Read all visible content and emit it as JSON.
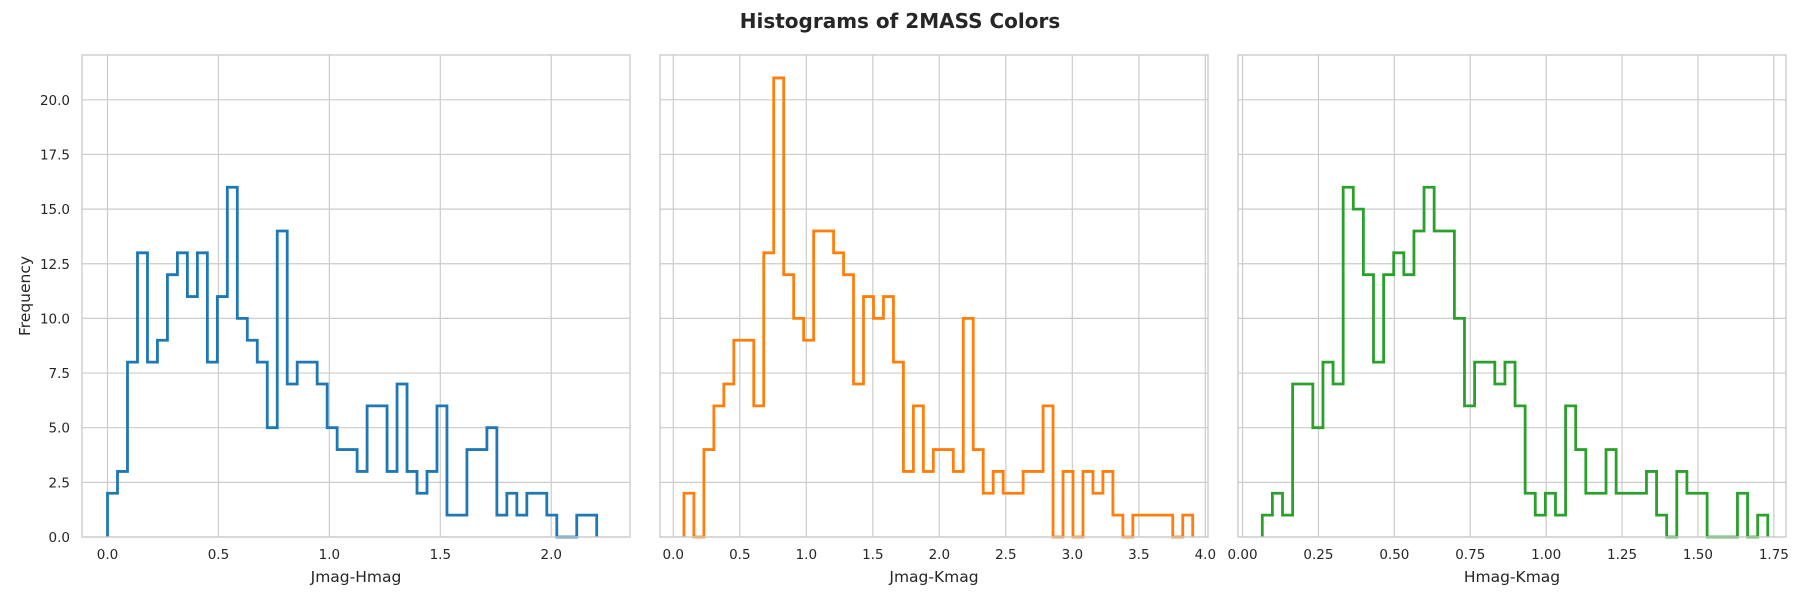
{
  "figure": {
    "title": "Histograms of 2MASS Colors"
  },
  "chart_data": [
    {
      "type": "histogram",
      "style": "step",
      "color": "#1f77b4",
      "xlabel": "Jmag-Hmag",
      "ylabel": "Frequency",
      "xlim": [
        -0.115,
        2.355
      ],
      "ylim": [
        0,
        22.05
      ],
      "xticks": [
        0.0,
        0.5,
        1.0,
        1.5,
        2.0
      ],
      "xtick_labels": [
        "0.0",
        "0.5",
        "1.0",
        "1.5",
        "2.0"
      ],
      "yticks": [
        0.0,
        2.5,
        5.0,
        7.5,
        10.0,
        12.5,
        15.0,
        17.5,
        20.0
      ],
      "ytick_labels": [
        "0.0",
        "2.5",
        "5.0",
        "7.5",
        "10.0",
        "12.5",
        "15.0",
        "17.5",
        "20.0"
      ],
      "grid": true,
      "bin_start": 0.0,
      "bin_width": 0.045,
      "counts": [
        2,
        3,
        8,
        13,
        8,
        9,
        12,
        13,
        11,
        13,
        8,
        11,
        16,
        10,
        9,
        8,
        5,
        14,
        7,
        8,
        8,
        7,
        5,
        4,
        4,
        3,
        6,
        6,
        3,
        7,
        3,
        2,
        3,
        6,
        1,
        1,
        4,
        4,
        5,
        1,
        2,
        1,
        2,
        2,
        1,
        0,
        0,
        1,
        1
      ]
    },
    {
      "type": "histogram",
      "style": "step",
      "color": "#ff7f0e",
      "xlabel": "Jmag-Kmag",
      "ylabel": "",
      "xlim": [
        -0.1,
        4.02
      ],
      "ylim": [
        0,
        22.05
      ],
      "xticks": [
        0.0,
        0.5,
        1.0,
        1.5,
        2.0,
        2.5,
        3.0,
        3.5,
        4.0
      ],
      "xtick_labels": [
        "0.0",
        "0.5",
        "1.0",
        "1.5",
        "2.0",
        "2.5",
        "3.0",
        "3.5",
        "4.0"
      ],
      "yticks": [
        0.0,
        2.5,
        5.0,
        7.5,
        10.0,
        12.5,
        15.0,
        17.5,
        20.0
      ],
      "grid": true,
      "bin_start": 0.08,
      "bin_width": 0.075,
      "counts": [
        2,
        0,
        4,
        6,
        7,
        9,
        9,
        6,
        13,
        21,
        12,
        10,
        9,
        14,
        14,
        13,
        12,
        7,
        11,
        10,
        11,
        8,
        3,
        6,
        3,
        4,
        4,
        3,
        10,
        4,
        2,
        3,
        2,
        2,
        3,
        3,
        6,
        0,
        3,
        0,
        3,
        2,
        3,
        1,
        0,
        1,
        1,
        1,
        1,
        0,
        1
      ]
    },
    {
      "type": "histogram",
      "style": "step",
      "color": "#2ca02c",
      "xlabel": "Hmag-Kmag",
      "ylabel": "",
      "xlim": [
        -0.015,
        1.79
      ],
      "ylim": [
        0,
        22.05
      ],
      "xticks": [
        0.0,
        0.25,
        0.5,
        0.75,
        1.0,
        1.25,
        1.5,
        1.75
      ],
      "xtick_labels": [
        "0.00",
        "0.25",
        "0.50",
        "0.75",
        "1.00",
        "1.25",
        "1.50",
        "1.75"
      ],
      "yticks": [
        0.0,
        2.5,
        5.0,
        7.5,
        10.0,
        12.5,
        15.0,
        17.5,
        20.0
      ],
      "grid": true,
      "bin_start": 0.065,
      "bin_width": 0.0333,
      "counts": [
        1,
        2,
        1,
        7,
        7,
        5,
        8,
        7,
        16,
        15,
        12,
        8,
        12,
        13,
        12,
        14,
        16,
        14,
        14,
        10,
        6,
        8,
        8,
        7,
        8,
        6,
        2,
        1,
        2,
        1,
        6,
        4,
        2,
        2,
        4,
        2,
        2,
        2,
        3,
        1,
        0,
        3,
        2,
        2,
        0,
        0,
        0,
        2,
        0,
        1
      ]
    }
  ]
}
